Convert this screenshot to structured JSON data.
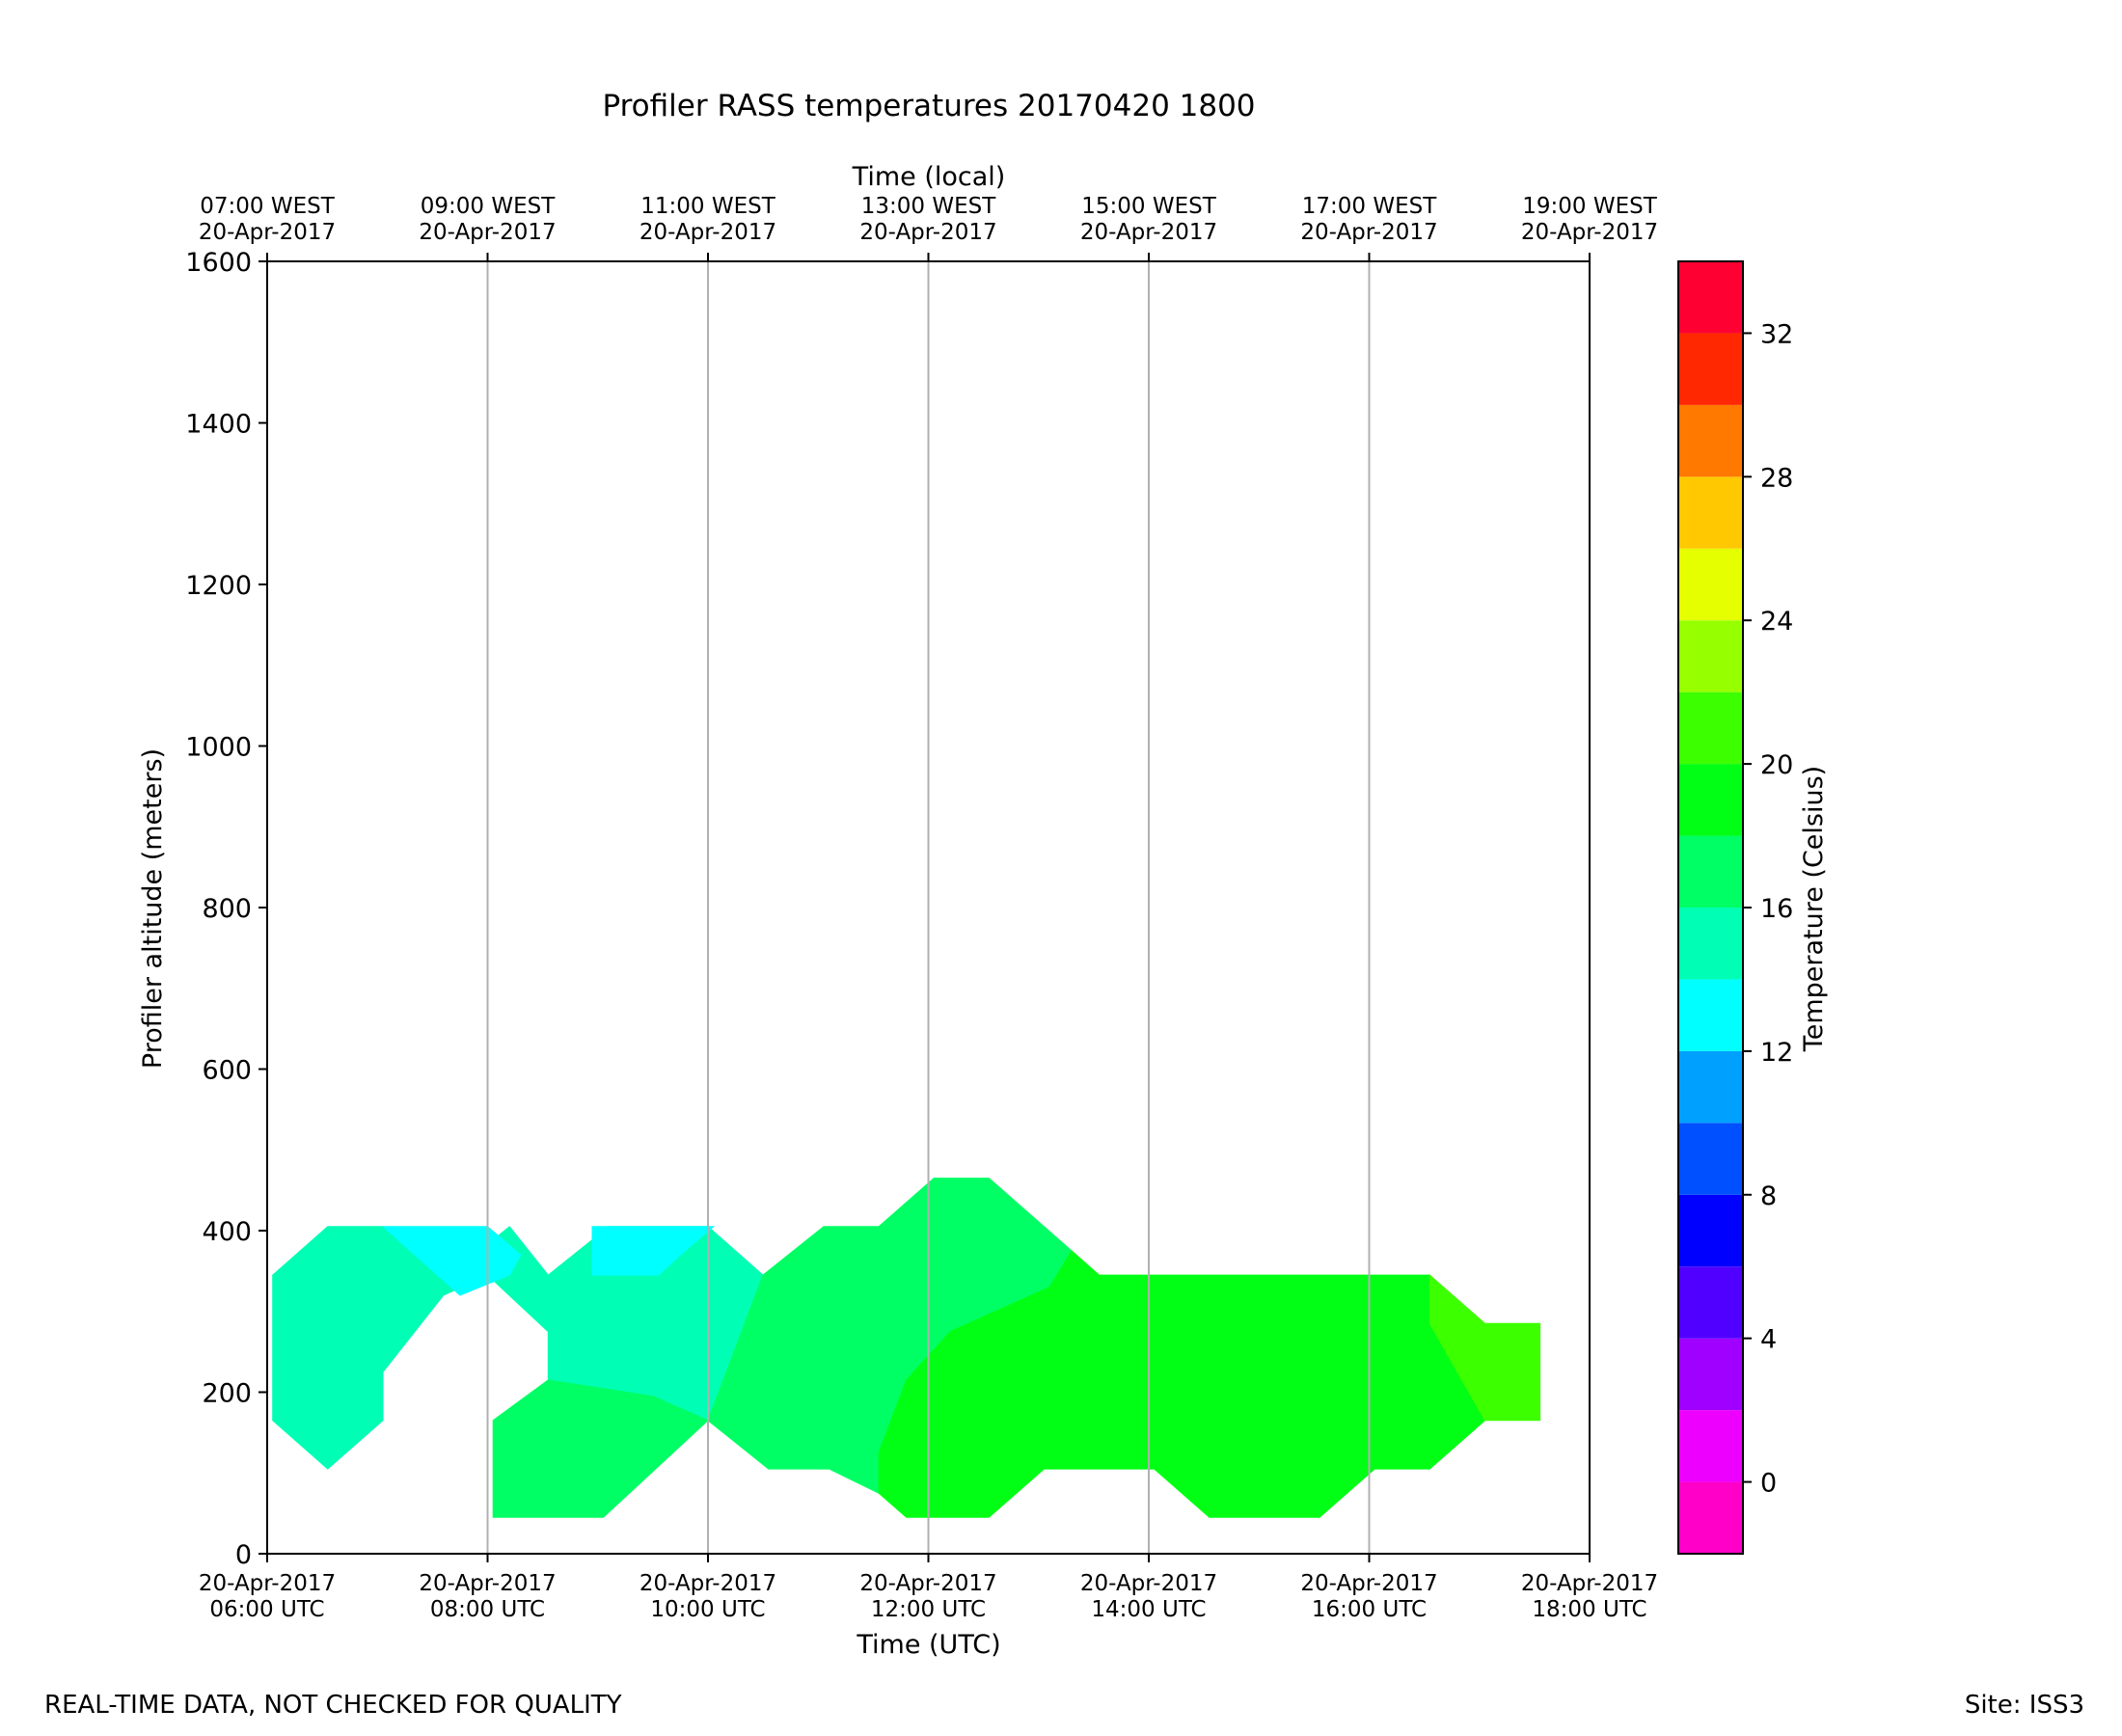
{
  "chart_data": {
    "type": "filled-contour",
    "title": "Profiler RASS temperatures 20170420 1800",
    "xlabel": "Time (UTC)",
    "xlabel_top": "Time (local)",
    "ylabel": "Profiler altitude (meters)",
    "colorbar_label": "Temperature (Celsius)",
    "x_range_utc_hours": [
      6,
      18
    ],
    "ylim": [
      0,
      1600
    ],
    "y_ticks": [
      0,
      200,
      400,
      600,
      800,
      1000,
      1200,
      1400,
      1600
    ],
    "x_ticks": [
      {
        "hour": 6,
        "date": "20-Apr-2017",
        "utc": "06:00 UTC",
        "local": "07:00 WEST"
      },
      {
        "hour": 8,
        "date": "20-Apr-2017",
        "utc": "08:00 UTC",
        "local": "09:00 WEST"
      },
      {
        "hour": 10,
        "date": "20-Apr-2017",
        "utc": "10:00 UTC",
        "local": "11:00 WEST"
      },
      {
        "hour": 12,
        "date": "20-Apr-2017",
        "utc": "12:00 UTC",
        "local": "13:00 WEST"
      },
      {
        "hour": 14,
        "date": "20-Apr-2017",
        "utc": "14:00 UTC",
        "local": "15:00 WEST"
      },
      {
        "hour": 16,
        "date": "20-Apr-2017",
        "utc": "16:00 UTC",
        "local": "17:00 WEST"
      },
      {
        "hour": 18,
        "date": "20-Apr-2017",
        "utc": "18:00 UTC",
        "local": "19:00 WEST"
      }
    ],
    "colorbar": {
      "range": [
        -2,
        34
      ],
      "tick_labels": [
        0,
        4,
        8,
        12,
        16,
        20,
        24,
        28,
        32
      ],
      "bands": [
        {
          "from": -2,
          "to": 0,
          "color": "#ff00c8"
        },
        {
          "from": 0,
          "to": 2,
          "color": "#ee00ff"
        },
        {
          "from": 2,
          "to": 4,
          "color": "#a000ff"
        },
        {
          "from": 4,
          "to": 6,
          "color": "#5000ff"
        },
        {
          "from": 6,
          "to": 8,
          "color": "#0000ff"
        },
        {
          "from": 8,
          "to": 10,
          "color": "#0050ff"
        },
        {
          "from": 10,
          "to": 12,
          "color": "#00a0ff"
        },
        {
          "from": 12,
          "to": 14,
          "color": "#00ffff"
        },
        {
          "from": 14,
          "to": 16,
          "color": "#00ffb4"
        },
        {
          "from": 16,
          "to": 18,
          "color": "#00ff64"
        },
        {
          "from": 18,
          "to": 20,
          "color": "#00ff14"
        },
        {
          "from": 20,
          "to": 22,
          "color": "#3cff00"
        },
        {
          "from": 22,
          "to": 24,
          "color": "#96ff00"
        },
        {
          "from": 24,
          "to": 26,
          "color": "#e6ff00"
        },
        {
          "from": 26,
          "to": 28,
          "color": "#ffc800"
        },
        {
          "from": 28,
          "to": 30,
          "color": "#ff7800"
        },
        {
          "from": 30,
          "to": 32,
          "color": "#ff2800"
        },
        {
          "from": 32,
          "to": 34,
          "color": "#ff0032"
        }
      ]
    },
    "regions": [
      {
        "band": "14-16",
        "color": "#00ffb4",
        "points": [
          [
            6.05,
            345
          ],
          [
            6.55,
            405
          ],
          [
            7.05,
            405
          ],
          [
            7.65,
            345
          ],
          [
            8.2,
            405
          ],
          [
            8.55,
            345
          ],
          [
            9.1,
            405
          ],
          [
            10.0,
            405
          ],
          [
            10.5,
            345
          ],
          [
            10.0,
            165
          ],
          [
            9.5,
            195
          ],
          [
            8.55,
            215
          ],
          [
            8.55,
            275
          ],
          [
            8.0,
            345
          ],
          [
            7.6,
            320
          ],
          [
            7.05,
            225
          ],
          [
            7.05,
            165
          ],
          [
            6.55,
            105
          ],
          [
            6.05,
            165
          ]
        ]
      },
      {
        "band": "12-14",
        "color": "#00ffff",
        "points": [
          [
            7.05,
            405
          ],
          [
            8.0,
            405
          ],
          [
            8.3,
            370
          ],
          [
            8.2,
            345
          ],
          [
            7.75,
            320
          ]
        ]
      },
      {
        "band": "12-14",
        "color": "#00ffff",
        "points": [
          [
            8.95,
            405
          ],
          [
            10.05,
            405
          ],
          [
            9.75,
            370
          ],
          [
            9.55,
            345
          ],
          [
            8.95,
            345
          ]
        ]
      },
      {
        "band": "16-18",
        "color": "#00ff64",
        "points": [
          [
            8.05,
            165
          ],
          [
            8.55,
            215
          ],
          [
            9.5,
            195
          ],
          [
            10.0,
            165
          ],
          [
            9.05,
            45
          ],
          [
            8.05,
            45
          ]
        ]
      },
      {
        "band": "16-18",
        "color": "#00ff64",
        "points": [
          [
            10.0,
            165
          ],
          [
            10.5,
            345
          ],
          [
            11.05,
            405
          ],
          [
            11.55,
            405
          ],
          [
            12.05,
            465
          ],
          [
            12.55,
            465
          ],
          [
            13.3,
            375
          ],
          [
            13.1,
            330
          ],
          [
            12.2,
            275
          ],
          [
            11.8,
            215
          ],
          [
            11.55,
            125
          ],
          [
            11.55,
            75
          ],
          [
            11.1,
            105
          ],
          [
            10.55,
            105
          ]
        ]
      },
      {
        "band": "18-20",
        "color": "#00ff14",
        "points": [
          [
            11.55,
            75
          ],
          [
            11.55,
            125
          ],
          [
            11.8,
            215
          ],
          [
            12.2,
            275
          ],
          [
            13.1,
            330
          ],
          [
            13.3,
            375
          ],
          [
            13.55,
            345
          ],
          [
            16.55,
            345
          ],
          [
            16.55,
            285
          ],
          [
            17.05,
            165
          ],
          [
            16.55,
            105
          ],
          [
            16.05,
            105
          ],
          [
            15.55,
            45
          ],
          [
            14.55,
            45
          ],
          [
            14.05,
            105
          ],
          [
            13.05,
            105
          ],
          [
            12.55,
            45
          ],
          [
            11.8,
            45
          ]
        ]
      },
      {
        "band": "20-22",
        "color": "#3cff00",
        "points": [
          [
            16.55,
            345
          ],
          [
            17.05,
            285
          ],
          [
            17.55,
            285
          ],
          [
            17.55,
            165
          ],
          [
            17.05,
            165
          ],
          [
            16.55,
            285
          ]
        ]
      }
    ],
    "footer_left": "REAL-TIME DATA, NOT CHECKED FOR QUALITY",
    "footer_right": "Site: ISS3"
  }
}
